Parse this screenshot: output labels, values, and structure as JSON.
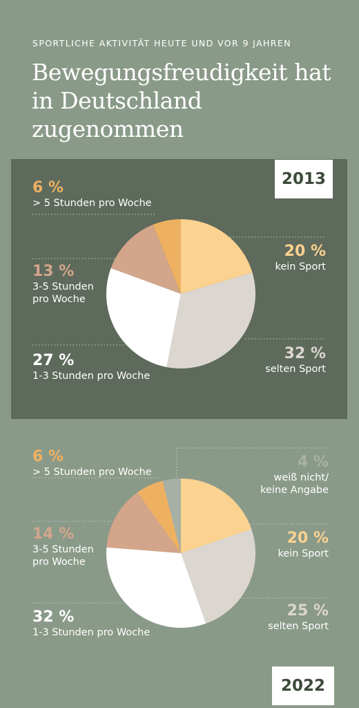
{
  "header": {
    "kicker": "SPORTLICHE AKTIVITÄT HEUTE UND VOR 9 JAHREN",
    "title": "Bewegungsfreudigkeit hat in Deutschland zugenommen"
  },
  "colors": {
    "background": "#8a9a89",
    "panel_2013": "#5e6a5c",
    "kein_sport": "#fbd290",
    "selten_sport": "#dcd6d0",
    "eins_drei_std": "#ffffff",
    "drei_fuenf_std": "#d3a58a",
    "ueber_fuenf_std": "#eeb162",
    "weiss_nicht": "#a7b0a5"
  },
  "chart_data": [
    {
      "type": "pie",
      "year_label": "2013",
      "categories": [
        "kein Sport",
        "selten Sport",
        "1-3 Stunden pro Woche",
        "3-5 Stunden pro Woche",
        "> 5 Stunden pro Woche"
      ],
      "values": [
        20,
        32,
        27,
        13,
        6
      ],
      "value_labels": [
        "20 %",
        "32 %",
        "27 %",
        "13 %",
        "6 %"
      ],
      "label_texts": [
        "kein Sport",
        "selten Sport",
        "1-3 Stunden pro Woche",
        "3-5 Stunden\npro Woche",
        "> 5 Stunden pro Woche"
      ],
      "colors": [
        "#fbd290",
        "#dcd6d0",
        "#ffffff",
        "#d3a58a",
        "#eeb162"
      ]
    },
    {
      "type": "pie",
      "year_label": "2022",
      "categories": [
        "kein Sport",
        "selten Sport",
        "1-3 Stunden pro Woche",
        "3-5 Stunden pro Woche",
        "> 5 Stunden pro Woche",
        "weiß nicht/keine Angabe"
      ],
      "values": [
        20,
        25,
        32,
        14,
        6,
        4
      ],
      "value_labels": [
        "20 %",
        "25 %",
        "32 %",
        "14 %",
        "6 %",
        "4 %"
      ],
      "label_texts": [
        "kein Sport",
        "selten Sport",
        "1-3 Stunden pro Woche",
        "3-5 Stunden\npro Woche",
        "> 5 Stunden pro Woche",
        "weiß nicht/\nkeine Angabe"
      ],
      "colors": [
        "#fbd290",
        "#dcd6d0",
        "#ffffff",
        "#d3a58a",
        "#eeb162",
        "#a7b0a5"
      ]
    }
  ]
}
